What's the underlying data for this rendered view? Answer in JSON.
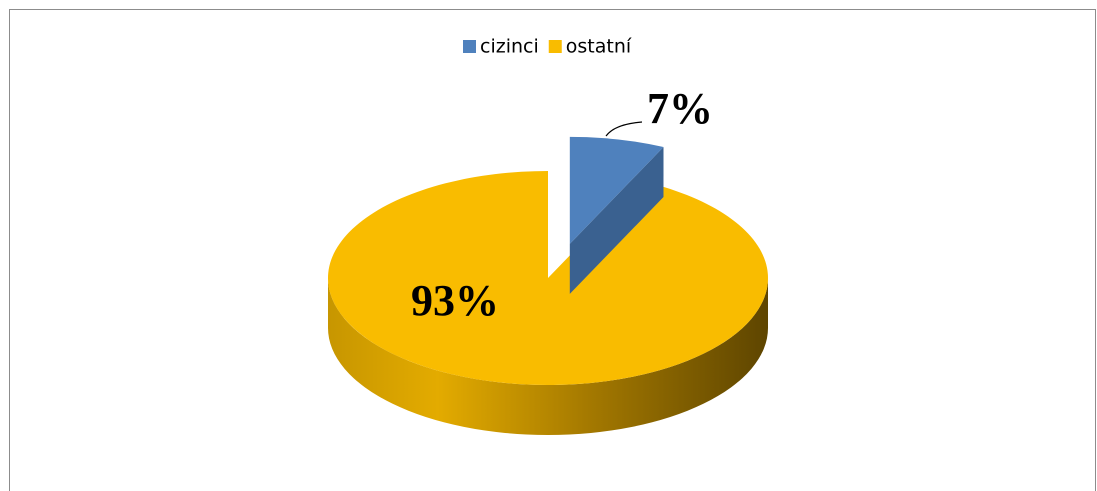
{
  "chart_data": {
    "type": "pie",
    "categories": [
      "cizinci",
      "ostatní"
    ],
    "values": [
      7,
      93
    ],
    "value_labels": [
      "7%",
      "93%"
    ],
    "colors": [
      "#4f81bd",
      "#f9bc00"
    ],
    "legend": "top"
  }
}
